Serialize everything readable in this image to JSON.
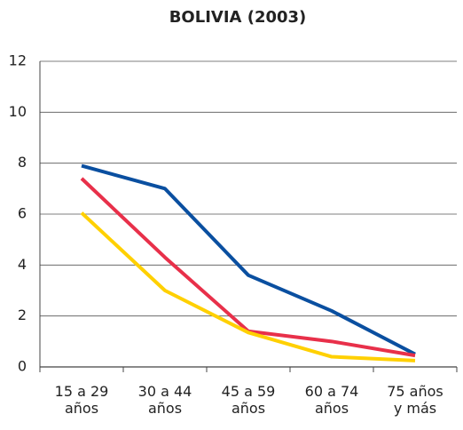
{
  "chart_data": {
    "type": "line",
    "title": "BOLIVIA (2003)",
    "categories": [
      "15 a 29 años",
      "30 a 44 años",
      "45 a 59 años",
      "60 a 74 años",
      "75 años y más"
    ],
    "series": [
      {
        "color": "#0a4fa0",
        "values": [
          7.9,
          7.0,
          3.6,
          2.2,
          0.5
        ]
      },
      {
        "color": "#e8304a",
        "values": [
          7.4,
          4.3,
          1.4,
          1.0,
          0.45
        ]
      },
      {
        "color": "#ffd000",
        "values": [
          6.05,
          3.0,
          1.35,
          0.4,
          0.25
        ]
      }
    ],
    "ylim": [
      0,
      12
    ],
    "yticks": [
      0,
      2,
      4,
      6,
      8,
      10,
      12
    ],
    "grid": true
  }
}
